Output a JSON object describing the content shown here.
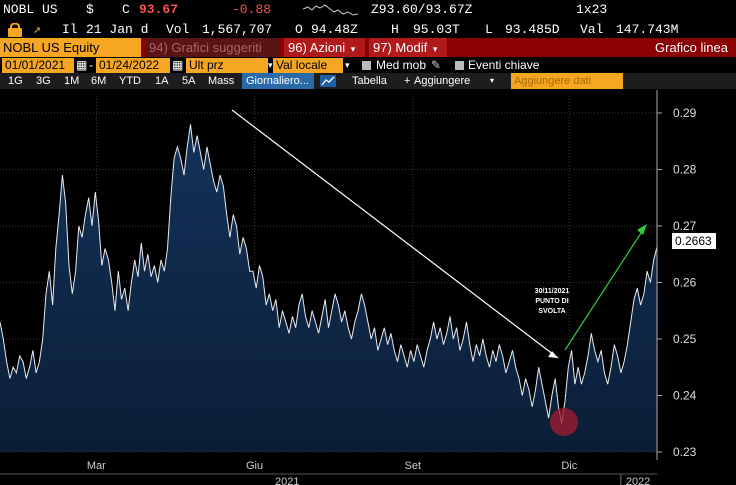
{
  "header": {
    "ticker": "NOBL US",
    "currency": "$",
    "c_label": "C",
    "last_price": "93.67",
    "change": "-0.88",
    "bid_ask": "Z93.60/93.67Z",
    "size": "1x23",
    "date_prefix": "Il",
    "date": "21 Jan d",
    "vol_label": "Vol",
    "volume": "1,567,707",
    "open_label": "O",
    "open": "94.48Z",
    "high_label": "H",
    "high": "95.03T",
    "low_label": "L",
    "low": "93.485D",
    "val_label": "Val",
    "value": "147.743M"
  },
  "toolbar": {
    "security": "NOBL US Equity",
    "suggested": "94) Grafici suggeriti",
    "actions": "96) Azioni",
    "modify": "97) Modif",
    "chart_type": "Grafico linea",
    "start_date": "01/01/2021",
    "end_date": "01/24/2022",
    "price_field": "Ult prz",
    "currency_field": "Val locale",
    "moving_avg": "Med mob",
    "key_events": "Eventi chiave",
    "periods": [
      "1G",
      "3G",
      "1M",
      "6M",
      "YTD",
      "1A",
      "5A",
      "Mass"
    ],
    "frequency": "Giornaliero...",
    "table": "Tabella",
    "add": "Aggiungere",
    "add_data": "Aggiungere dati"
  },
  "chart_data": {
    "type": "area",
    "x_start": "2021-01-04",
    "x_end": "2022-01-21",
    "x_tick_labels": [
      "Mar",
      "Giu",
      "Set",
      "Dic"
    ],
    "year_labels": [
      "2021",
      "2022"
    ],
    "ylim": [
      0.23,
      0.293
    ],
    "y_ticks": [
      "0.29",
      "0.28",
      "0.27",
      "0.26",
      "0.25",
      "0.24",
      "0.23"
    ],
    "last_value": "0.2663",
    "annotation": "30/11/2021\nPUNTO DI\nSVOLTA",
    "values": [
      0.253,
      0.25,
      0.246,
      0.243,
      0.245,
      0.244,
      0.247,
      0.246,
      0.243,
      0.245,
      0.248,
      0.244,
      0.246,
      0.25,
      0.258,
      0.262,
      0.256,
      0.266,
      0.272,
      0.279,
      0.274,
      0.263,
      0.258,
      0.262,
      0.27,
      0.268,
      0.272,
      0.275,
      0.27,
      0.276,
      0.271,
      0.263,
      0.266,
      0.264,
      0.26,
      0.255,
      0.262,
      0.257,
      0.259,
      0.255,
      0.26,
      0.264,
      0.261,
      0.267,
      0.262,
      0.265,
      0.261,
      0.263,
      0.26,
      0.264,
      0.262,
      0.266,
      0.275,
      0.282,
      0.284,
      0.282,
      0.279,
      0.284,
      0.288,
      0.283,
      0.286,
      0.283,
      0.28,
      0.284,
      0.281,
      0.278,
      0.276,
      0.279,
      0.277,
      0.272,
      0.268,
      0.272,
      0.27,
      0.265,
      0.268,
      0.266,
      0.262,
      0.262,
      0.259,
      0.263,
      0.261,
      0.256,
      0.258,
      0.255,
      0.257,
      0.252,
      0.255,
      0.253,
      0.251,
      0.254,
      0.252,
      0.256,
      0.258,
      0.254,
      0.252,
      0.255,
      0.253,
      0.251,
      0.254,
      0.257,
      0.252,
      0.255,
      0.258,
      0.256,
      0.253,
      0.255,
      0.252,
      0.25,
      0.253,
      0.255,
      0.258,
      0.256,
      0.253,
      0.25,
      0.252,
      0.248,
      0.25,
      0.252,
      0.249,
      0.251,
      0.248,
      0.246,
      0.249,
      0.247,
      0.245,
      0.248,
      0.246,
      0.249,
      0.247,
      0.245,
      0.248,
      0.25,
      0.253,
      0.25,
      0.252,
      0.249,
      0.251,
      0.254,
      0.25,
      0.252,
      0.248,
      0.25,
      0.253,
      0.249,
      0.246,
      0.249,
      0.247,
      0.25,
      0.247,
      0.245,
      0.248,
      0.246,
      0.249,
      0.247,
      0.244,
      0.246,
      0.248,
      0.245,
      0.243,
      0.24,
      0.243,
      0.241,
      0.238,
      0.241,
      0.245,
      0.242,
      0.239,
      0.236,
      0.24,
      0.243,
      0.238,
      0.235,
      0.239,
      0.245,
      0.248,
      0.242,
      0.245,
      0.242,
      0.244,
      0.247,
      0.251,
      0.248,
      0.246,
      0.248,
      0.244,
      0.242,
      0.245,
      0.249,
      0.247,
      0.244,
      0.246,
      0.249,
      0.253,
      0.257,
      0.259,
      0.256,
      0.258,
      0.262,
      0.26,
      0.264,
      0.2663
    ]
  }
}
